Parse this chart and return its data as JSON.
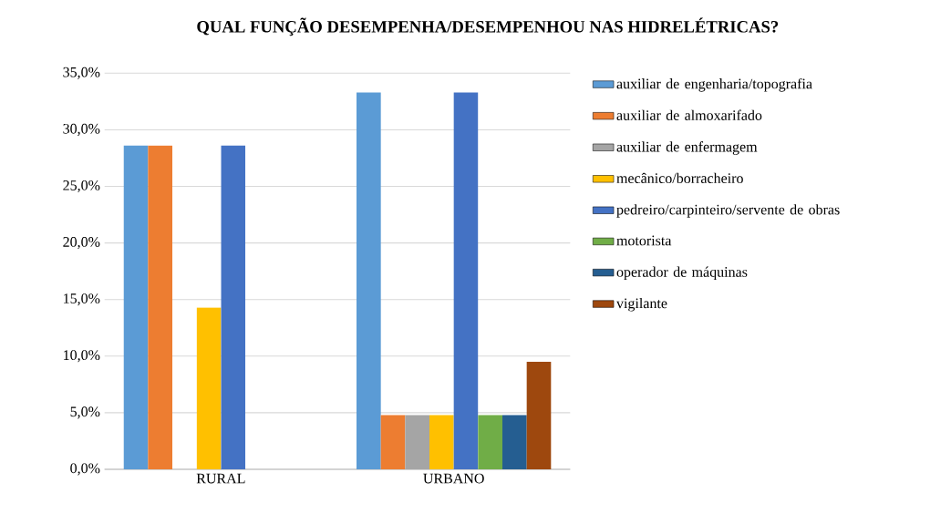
{
  "chart_data": {
    "type": "bar",
    "title": "QUAL FUNÇÃO DESEMPENHA/DESEMPENHOU NAS HIDRELÉTRICAS?",
    "categories": [
      "RURAL",
      "URBANO"
    ],
    "series": [
      {
        "name": "auxiliar de engenharia/topografia",
        "color": "#5b9bd5",
        "values": [
          28.6,
          33.3
        ]
      },
      {
        "name": "auxiliar de almoxarifado",
        "color": "#ed7d31",
        "values": [
          28.6,
          4.8
        ]
      },
      {
        "name": "auxiliar de enfermagem",
        "color": "#a5a5a5",
        "values": [
          0,
          4.8
        ]
      },
      {
        "name": "mecânico/borracheiro",
        "color": "#ffc000",
        "values": [
          14.3,
          4.8
        ]
      },
      {
        "name": "pedreiro/carpinteiro/servente de obras",
        "color": "#4472c4",
        "values": [
          28.6,
          33.3
        ]
      },
      {
        "name": "motorista",
        "color": "#70ad47",
        "values": [
          0,
          4.8
        ]
      },
      {
        "name": "operador de máquinas",
        "color": "#255e91",
        "values": [
          0,
          4.8
        ]
      },
      {
        "name": "vigilante",
        "color": "#9e480e",
        "values": [
          0,
          9.5
        ]
      }
    ],
    "ylim": [
      0,
      35
    ],
    "yticks": [
      {
        "value": 0,
        "label": "0,0%"
      },
      {
        "value": 5,
        "label": "5,0%"
      },
      {
        "value": 10,
        "label": "10,0%"
      },
      {
        "value": 15,
        "label": "15,0%"
      },
      {
        "value": 20,
        "label": "20,0%"
      },
      {
        "value": 25,
        "label": "25,0%"
      },
      {
        "value": 30,
        "label": "30,0%"
      },
      {
        "value": 35,
        "label": "35,0%"
      }
    ],
    "grid": "y",
    "legend": "right"
  }
}
